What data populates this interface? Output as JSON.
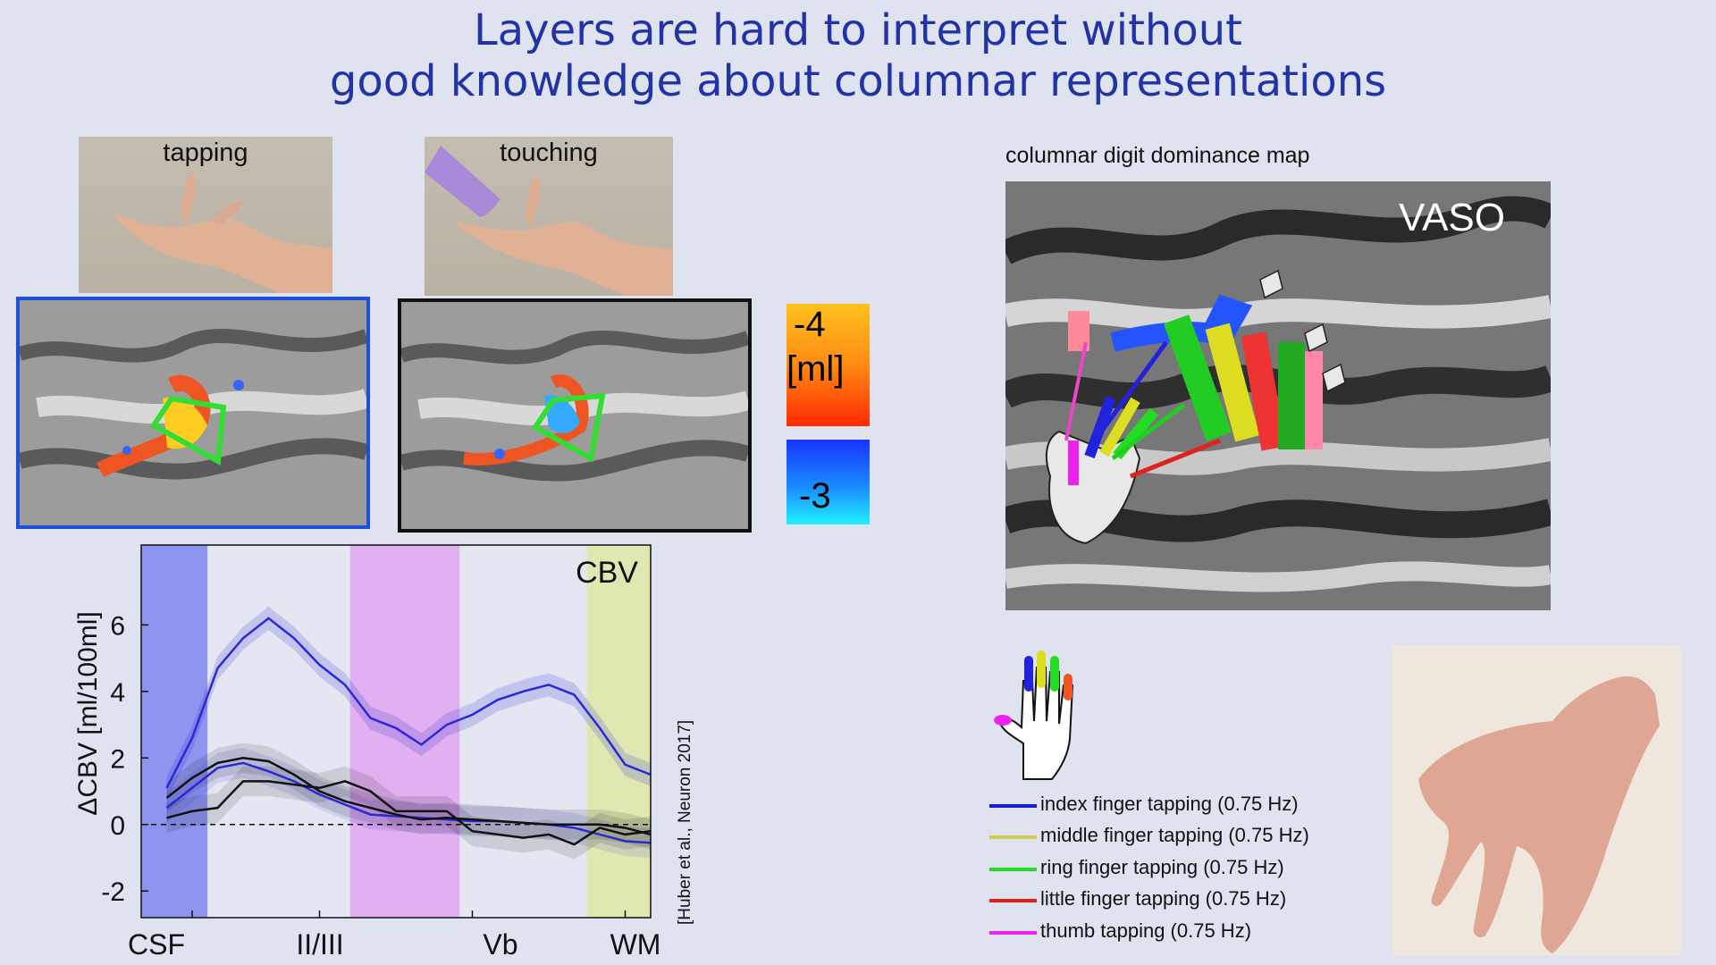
{
  "title": {
    "line1": "Layers are hard to interpret without",
    "line2": "good knowledge about columnar representations"
  },
  "photos": {
    "tapping_label": "tapping",
    "touching_label": "touching"
  },
  "colorbar": {
    "top_value": "-4",
    "unit": "[ml]",
    "bottom_value": "-3"
  },
  "chart_data": {
    "type": "line",
    "title": "CBV",
    "ylabel": "ΔCBV [ml/100ml]",
    "xlabel": "",
    "x_tick_labels": [
      "CSF",
      "II/III",
      "Vb",
      "WM"
    ],
    "yticks": [
      -2,
      0,
      2,
      4,
      6
    ],
    "ylim": [
      -2.8,
      8.4
    ],
    "xlim": [
      0,
      20
    ],
    "x": [
      1,
      2,
      3,
      4,
      5,
      6,
      7,
      8,
      9,
      10,
      11,
      12,
      13,
      14,
      15,
      16,
      17,
      18,
      19,
      20
    ],
    "series": [
      {
        "color": "#2929d6",
        "values": [
          1.1,
          2.6,
          4.7,
          5.6,
          6.2,
          5.6,
          4.8,
          4.2,
          3.2,
          2.9,
          2.4,
          3.0,
          3.3,
          3.75,
          4.0,
          4.2,
          3.9,
          2.9,
          1.8,
          1.5
        ]
      },
      {
        "color": "#2929d6",
        "values": [
          0.5,
          1.1,
          1.7,
          1.85,
          1.6,
          1.3,
          0.9,
          0.6,
          0.3,
          0.25,
          0.2,
          0.15,
          0.1,
          0.1,
          0.05,
          0.0,
          -0.1,
          -0.3,
          -0.5,
          -0.55
        ]
      },
      {
        "color": "#111111",
        "values": [
          0.8,
          1.4,
          1.85,
          2.0,
          1.9,
          1.5,
          1.0,
          0.7,
          0.5,
          0.3,
          0.15,
          0.2,
          0.15,
          0.1,
          0.05,
          0.0,
          0.0,
          0.0,
          -0.1,
          -0.3
        ]
      },
      {
        "color": "#111111",
        "values": [
          0.2,
          0.4,
          0.5,
          1.3,
          1.3,
          1.2,
          1.1,
          1.3,
          1.0,
          0.4,
          0.4,
          0.4,
          -0.2,
          -0.3,
          -0.4,
          -0.3,
          -0.6,
          -0.1,
          -0.3,
          -0.2
        ]
      }
    ],
    "bands": [
      {
        "from": 0,
        "to": 2.6,
        "color": "#7f86f0"
      },
      {
        "from": 8.2,
        "to": 12.5,
        "color": "#e2a5f0"
      },
      {
        "from": 17.5,
        "to": 20,
        "color": "#dfe6a6"
      }
    ],
    "zero_line": "dashed"
  },
  "citation": "[Huber et al., Neuron 2017]",
  "map": {
    "title": "columnar digit dominance map",
    "label": "VASO"
  },
  "legend": [
    {
      "label": "index finger tapping (0.75 Hz)",
      "color": "#1c1cd8"
    },
    {
      "label": "middle finger tapping (0.75 Hz)",
      "color": "#cfcf4a"
    },
    {
      "label": "ring finger tapping (0.75 Hz)",
      "color": "#22dd22"
    },
    {
      "label": "little finger tapping (0.75 Hz)",
      "color": "#dd2222"
    },
    {
      "label": "thumb tapping (0.75 Hz)",
      "color": "#ee22ee"
    }
  ]
}
